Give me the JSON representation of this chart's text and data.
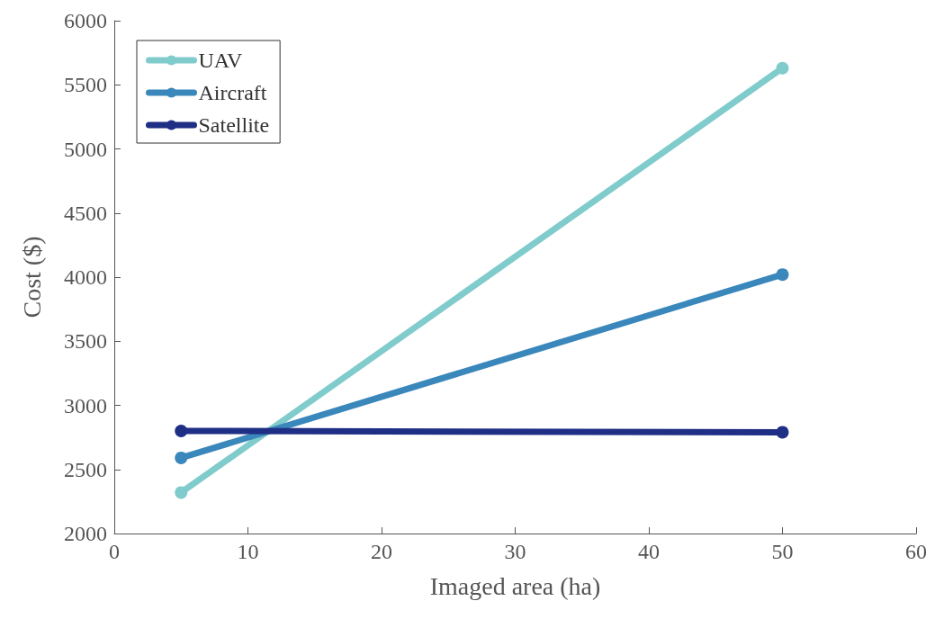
{
  "chart_data": {
    "type": "line",
    "xlabel": "Imaged area (ha)",
    "ylabel": "Cost ($)",
    "x": [
      5,
      50
    ],
    "series": [
      {
        "name": "UAV",
        "color": "#80cbcc",
        "values": [
          2320,
          5630
        ]
      },
      {
        "name": "Aircraft",
        "color": "#3a87bb",
        "values": [
          2590,
          4020
        ]
      },
      {
        "name": "Satellite",
        "color": "#1f2f86",
        "values": [
          2800,
          2790
        ]
      }
    ],
    "xlim": [
      0,
      60
    ],
    "xticks": [
      0,
      10,
      20,
      30,
      40,
      50,
      60
    ],
    "ylim": [
      2000,
      6000
    ],
    "yticks": [
      2000,
      2500,
      3000,
      3500,
      4000,
      4500,
      5000,
      5500,
      6000
    ],
    "grid": false,
    "legend": "top left",
    "marker": "circle",
    "line_style": "solid"
  }
}
